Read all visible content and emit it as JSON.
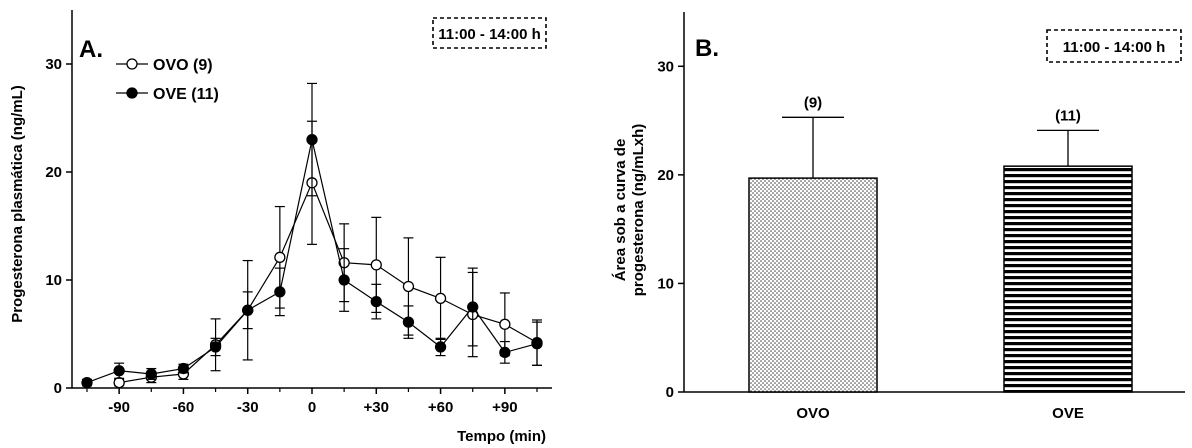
{
  "chart_data": [
    {
      "type": "line",
      "panel_label": "A.",
      "time_window": "11:00 - 14:00 h",
      "xlabel": "Tempo (min)",
      "ylabel": "Progesterona plasmática (ng/mL)",
      "xlim": [
        -112,
        112
      ],
      "ylim": [
        0,
        35
      ],
      "xticks": [
        -90,
        -60,
        -30,
        0,
        30,
        60,
        90
      ],
      "xtick_labels": [
        "-90",
        "-60",
        "-30",
        "0",
        "+30",
        "+60",
        "+90"
      ],
      "yticks": [
        0,
        10,
        20,
        30
      ],
      "ytick_labels": [
        "0",
        "10",
        "20",
        "30"
      ],
      "legend": "top-left",
      "series": [
        {
          "name": "OVO (9)",
          "marker": "open-circle",
          "x": [
            -90,
            -75,
            -60,
            -45,
            -30,
            -15,
            0,
            15,
            30,
            45,
            60,
            75,
            90,
            105
          ],
          "y": [
            0.5,
            1.0,
            1.3,
            4.0,
            7.2,
            12.1,
            19.0,
            11.6,
            11.4,
            9.4,
            8.3,
            6.8,
            5.9,
            4.2
          ],
          "err": [
            0.3,
            0.5,
            0.5,
            2.4,
            4.6,
            4.7,
            5.7,
            3.6,
            4.4,
            4.5,
            3.8,
            3.9,
            2.9,
            2.1
          ]
        },
        {
          "name": "OVE (11)",
          "marker": "filled-circle",
          "x": [
            -105,
            -90,
            -75,
            -60,
            -45,
            -30,
            -15,
            0,
            15,
            30,
            45,
            60,
            75,
            90,
            105
          ],
          "y": [
            0.5,
            1.6,
            1.3,
            1.8,
            3.8,
            7.2,
            8.9,
            23.0,
            10.0,
            8.0,
            6.1,
            3.8,
            7.5,
            3.3,
            4.1
          ],
          "err": [
            0.3,
            0.7,
            0.5,
            0.4,
            0.8,
            1.7,
            2.2,
            5.2,
            2.9,
            1.6,
            1.5,
            0.8,
            3.6,
            1.0,
            2.0
          ]
        }
      ]
    },
    {
      "type": "bar",
      "panel_label": "B.",
      "time_window": "11:00 - 14:00 h",
      "ylabel_lines": [
        "Área sob a curva de",
        "progesterona (ng/mLxh)"
      ],
      "ylim": [
        0,
        35
      ],
      "yticks": [
        0,
        10,
        20,
        30
      ],
      "ytick_labels": [
        "0",
        "10",
        "20",
        "30"
      ],
      "categories": [
        "OVO",
        "OVE"
      ],
      "values": [
        19.7,
        20.8
      ],
      "err": [
        5.6,
        3.3
      ],
      "n_labels": [
        "(9)",
        "(11)"
      ],
      "fills": [
        "dots",
        "horizontal-stripes"
      ]
    }
  ]
}
